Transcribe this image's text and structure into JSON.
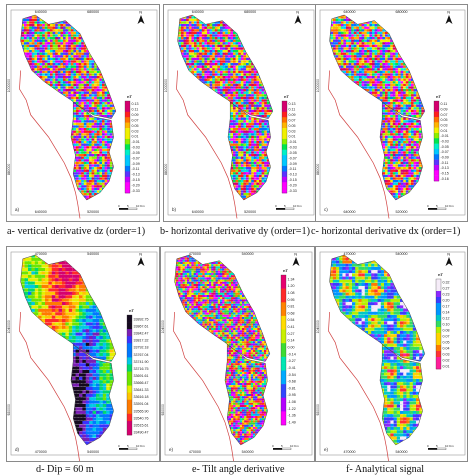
{
  "panels": [
    {
      "letter": "a)",
      "unit": "nT",
      "caption": "a- vertical derivative dz (order=1)",
      "ticks_x": [
        "640000",
        "680000"
      ],
      "ticks_y": [
        "1000000",
        "880000"
      ],
      "bottom_ticks": [
        "640000",
        "520000"
      ],
      "legend": [
        "0.13",
        "0.11",
        "0.09",
        "0.07",
        "0.05",
        "0.03",
        "0.01",
        "-0.01",
        "-0.03",
        "-0.05",
        "-0.07",
        "-0.09",
        "-0.11",
        "-0.13",
        "-0.15",
        "-0.20",
        "-0.33"
      ],
      "scale": [
        "0",
        "5",
        "10 Km"
      ],
      "scheme": "rainbow"
    },
    {
      "letter": "b)",
      "unit": "nT",
      "caption": "b- horizontal derivative dy (order=1)",
      "ticks_x": [
        "640000",
        "680000"
      ],
      "ticks_y": [
        "1000000",
        "880000"
      ],
      "bottom_ticks": [
        "640000",
        "520000"
      ],
      "legend": [
        "0.13",
        "0.11",
        "0.09",
        "0.07",
        "0.05",
        "0.03",
        "0.01",
        "-0.01",
        "-0.03",
        "-0.05",
        "-0.07",
        "-0.09",
        "-0.11",
        "-0.13",
        "-0.15",
        "-0.20",
        "-0.33"
      ],
      "scale": [
        "0",
        "5",
        "10 Km"
      ],
      "scheme": "rainbow"
    },
    {
      "letter": "c)",
      "unit": "nT",
      "caption": "c- horizontal derivative dx (order=1)",
      "ticks_x": [
        "640000",
        "680000"
      ],
      "ticks_y": [
        "1000000",
        "880000"
      ],
      "bottom_ticks": [
        "640000",
        "520000"
      ],
      "legend": [
        "0.11",
        "0.09",
        "0.07",
        "0.05",
        "0.03",
        "0.01",
        "-0.01",
        "-0.03",
        "-0.05",
        "-0.07",
        "-0.09",
        "-0.11",
        "-0.13",
        "-0.15",
        "-0.16"
      ],
      "scale": [
        "0",
        "5",
        "10 Km"
      ],
      "scheme": "rainbow"
    },
    {
      "letter": "d)",
      "unit": "nT",
      "caption": "d- Dip = 60 m",
      "ticks_x": [
        "470000",
        "540000"
      ],
      "ticks_y": [
        "1040000",
        "920000"
      ],
      "bottom_ticks": [
        "470000",
        "540000"
      ],
      "legend": [
        "33892.75",
        "33867.61",
        "33842.47",
        "33817.32",
        "33792.18",
        "33767.04",
        "33741.90",
        "33716.75",
        "33691.61",
        "33666.47",
        "33641.33",
        "33616.18",
        "33591.04",
        "33565.90",
        "33540.76",
        "33515.61",
        "33490.47"
      ],
      "scale": [
        "0",
        "5",
        "10 Km"
      ],
      "scheme": "dip"
    },
    {
      "letter": "e)",
      "unit": "nT",
      "caption": "e- Tilt angle derivative",
      "ticks_x": [
        "470000",
        "540000"
      ],
      "ticks_y": [
        "1040000",
        "920000"
      ],
      "bottom_ticks": [
        "470000",
        "540000"
      ],
      "legend": [
        "1.34",
        "1.20",
        "1.08",
        "0.95",
        "0.81",
        "0.68",
        "0.54",
        "0.41",
        "0.27",
        "0.14",
        "0.00",
        "-0.14",
        "-0.27",
        "-0.41",
        "-0.54",
        "-0.68",
        "-0.81",
        "-0.95",
        "-1.08",
        "-1.22",
        "-1.36",
        "-1.49"
      ],
      "scale": [
        "0",
        "5",
        "10 Km"
      ],
      "scheme": "tilt"
    },
    {
      "letter": "e)",
      "unit": "nT",
      "caption": "f- Analytical signal",
      "ticks_x": [
        "470000",
        "540000"
      ],
      "ticks_y": [
        "1040000",
        "920000"
      ],
      "bottom_ticks": [
        "470000",
        "540000"
      ],
      "legend": [
        "0.32",
        "0.27",
        "0.23",
        "0.20",
        "0.17",
        "0.14",
        "0.12",
        "0.10",
        "0.08",
        "0.07",
        "0.05",
        "0.04",
        "0.03",
        "0.02",
        "0.01"
      ],
      "scale": [
        "0",
        "5",
        "10 Km"
      ],
      "scheme": "analytic"
    }
  ],
  "north_label": "N",
  "colors": {
    "frame": "#8a8a8a",
    "boundary": "#d04040",
    "rainbow": [
      "#ff00ff",
      "#c000ff",
      "#5a32ff",
      "#0078ff",
      "#00c8ff",
      "#00f0c8",
      "#00e650",
      "#8cf000",
      "#f0f000",
      "#ffb400",
      "#ff6e00",
      "#ff1e1e",
      "#d4006e"
    ],
    "dip": [
      "#d6006e",
      "#ff2a2a",
      "#ff7a00",
      "#ffc400",
      "#e6f000",
      "#6ee600",
      "#00d86e",
      "#00c8e6",
      "#0078ff",
      "#3c32ff",
      "#7a1eb4",
      "#160a20"
    ],
    "tilt": [
      "#ff00ff",
      "#b400ff",
      "#3246ff",
      "#00aaff",
      "#00e6b4",
      "#3cdc32",
      "#c8f000",
      "#ffdc00",
      "#ff8200",
      "#ff2828",
      "#e6006e"
    ],
    "analytic": [
      "#ff1e9a",
      "#ff3232",
      "#ff7a00",
      "#ffd200",
      "#b4f000",
      "#32dc64",
      "#00c8c8",
      "#0096ff",
      "#3c3cff",
      "#8c28ff",
      "#f5ecf8"
    ]
  }
}
